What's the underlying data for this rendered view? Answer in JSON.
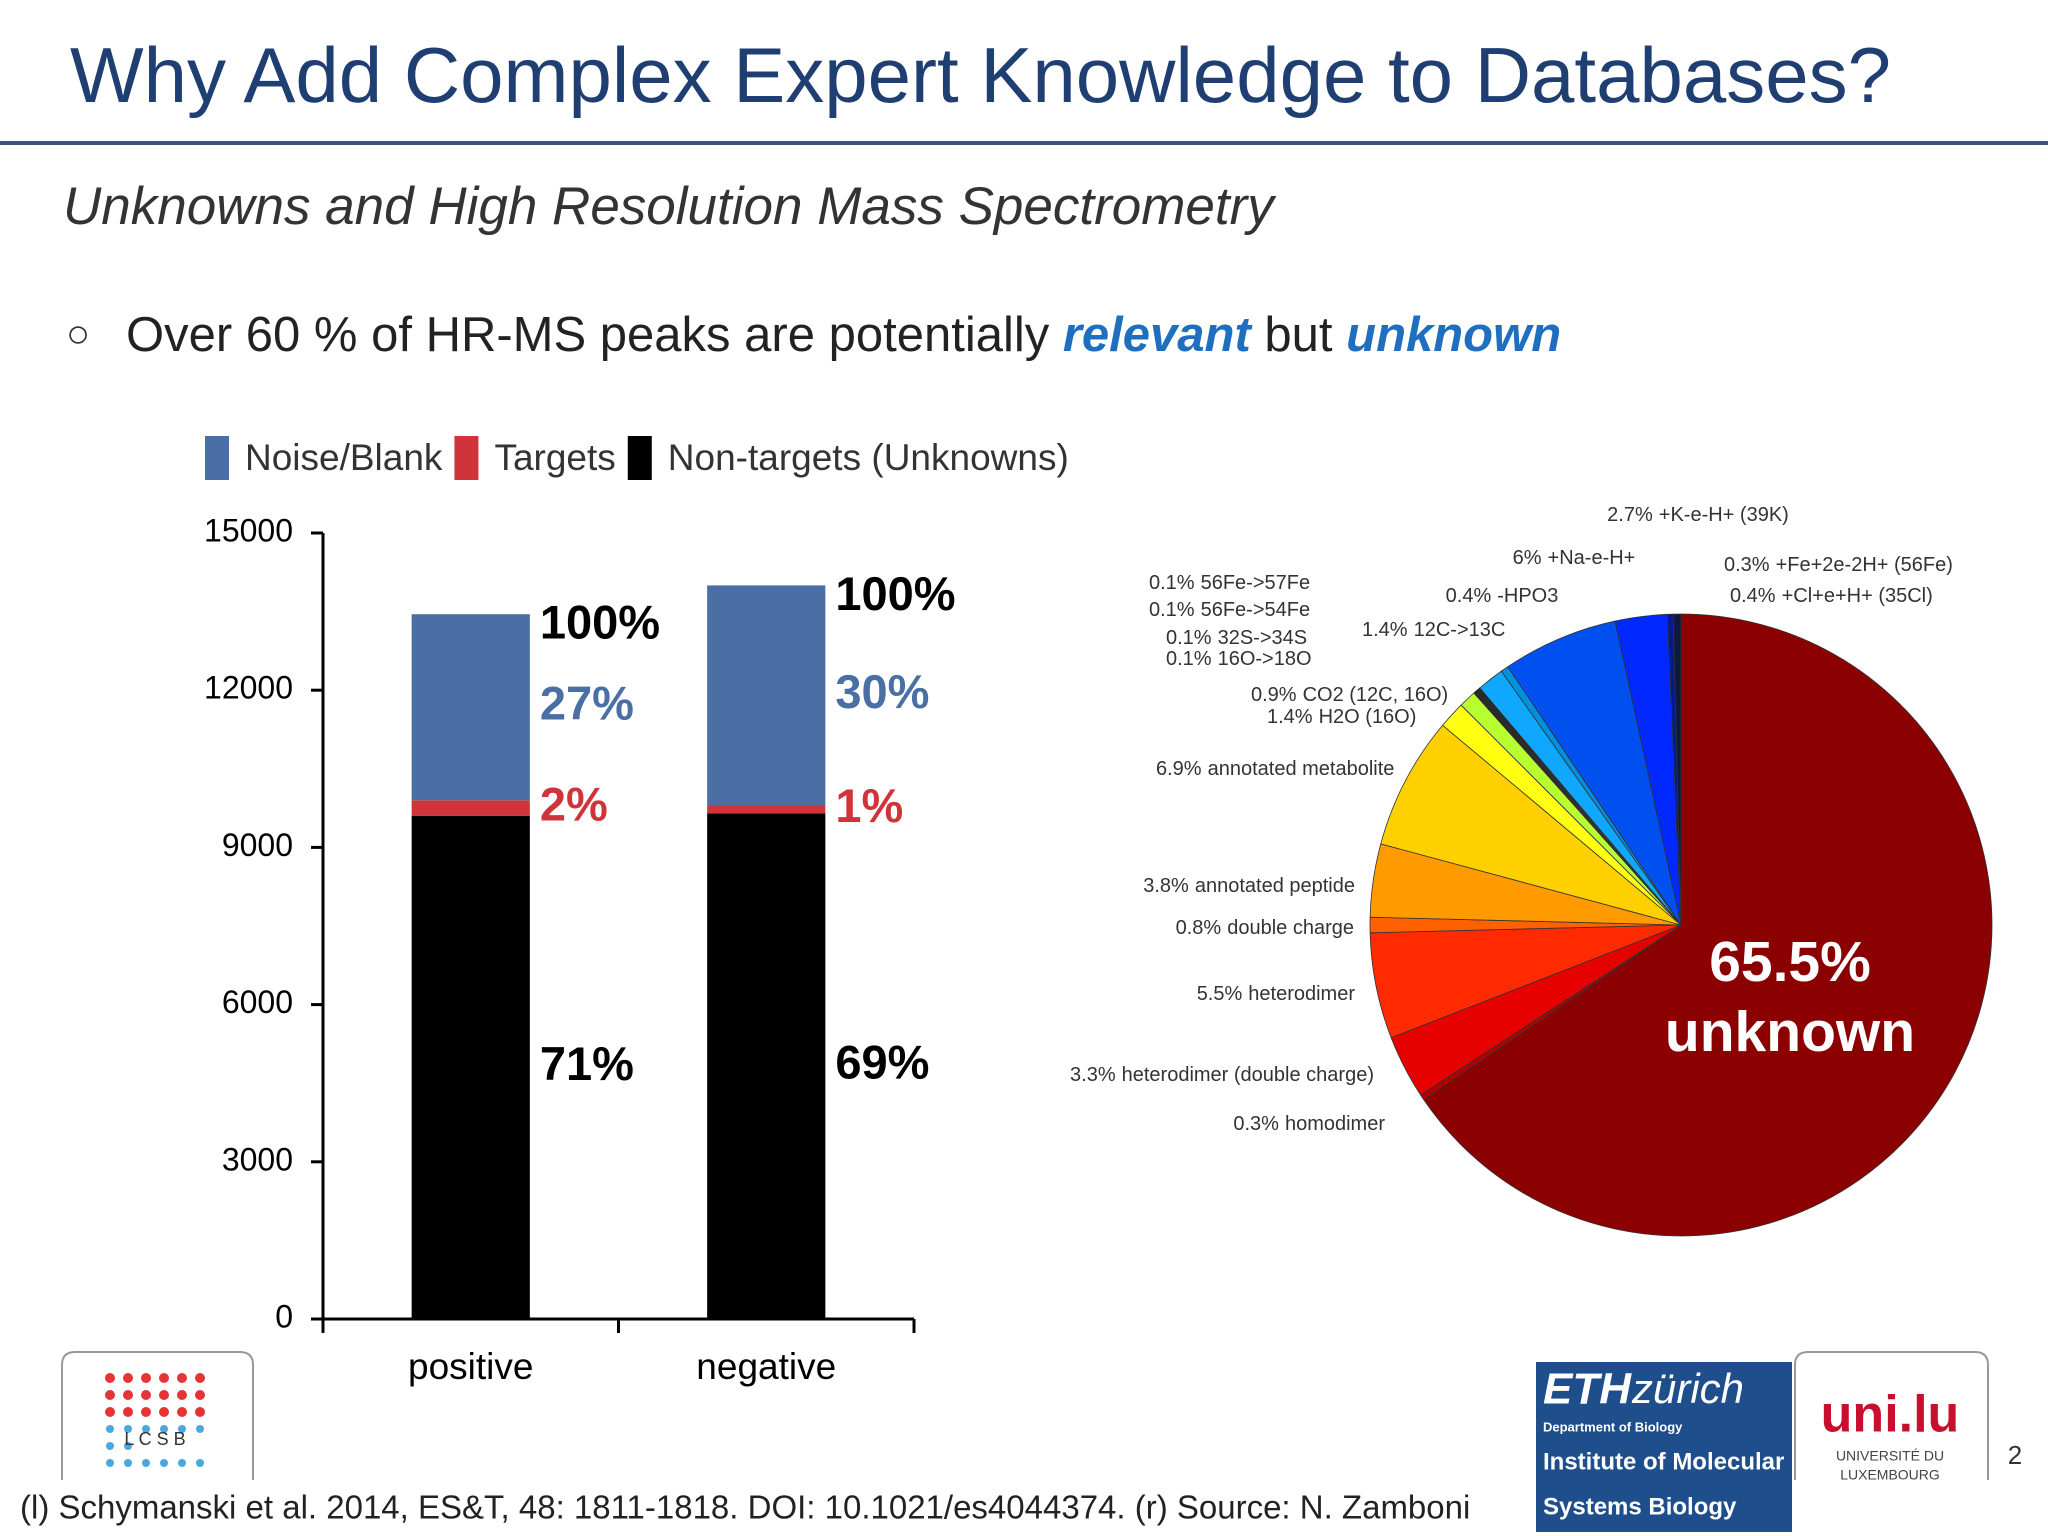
{
  "slide": {
    "title": "Why Add Complex Expert Knowledge to Databases?",
    "subtitle": "Unknowns and High Resolution Mass Spectrometry",
    "bullet": {
      "text": "Over 60 % of HR-MS peaks are potentially ",
      "em1": "relevant",
      "mid": " but ",
      "em2": "unknown"
    },
    "footer": "(l) Schymanski et al. 2014, ES&T, 48: 1811-1818. DOI: 10.1021/es4044374. (r) Source: N. Zamboni",
    "page_number": "2",
    "logos": {
      "lcsb": "L C S B",
      "eth": "ETH",
      "zurich": "zürich",
      "eth_dept": "Department of Biology",
      "eth_inst1": "Institute of Molecular",
      "eth_inst2": "Systems Biology",
      "unilu": "uni.lu",
      "unilu_1": "UNIVERSITÉ DU",
      "unilu_2": "LUXEMBOURG"
    }
  },
  "chart_data": [
    {
      "type": "stacked_bar",
      "categories": [
        "positive",
        "negative"
      ],
      "series": [
        {
          "name": "Non-targets (Unknowns)",
          "color": "#000000",
          "values": [
            9600,
            9650
          ],
          "annotations": [
            "71%",
            "69%"
          ]
        },
        {
          "name": "Targets",
          "color": "#d0343a",
          "values": [
            300,
            150
          ],
          "annotations": [
            "2%",
            "1%"
          ]
        },
        {
          "name": "Noise/Blank",
          "color": "#4a6fa5",
          "values": [
            3550,
            4200
          ],
          "annotations": [
            "27%",
            "30%"
          ]
        }
      ],
      "total_annotations": [
        "100%",
        "100%"
      ],
      "legend_order": [
        2,
        1,
        0
      ],
      "ylim": [
        0,
        15000
      ],
      "yticks": [
        0,
        3000,
        6000,
        9000,
        12000,
        15000
      ],
      "grid": false
    },
    {
      "type": "pie",
      "categories": [
        "unknown",
        "homodimer",
        "heterodimer (double charge)",
        "heterodimer",
        "double charge",
        "annotated peptide",
        "annotated metabolite",
        "H2O (16O)",
        "CO2 (12C, 16O)",
        "16O->18O",
        "32S->34S",
        "56Fe->54Fe",
        "56Fe->57Fe",
        "12C->13C",
        "-HPO3",
        "+Na-e-H+",
        "+K-e-H+ (39K)",
        "+Fe+2e-2H+ (56Fe)",
        "+Cl+e+H+ (35Cl)"
      ],
      "values": [
        65.5,
        0.3,
        3.3,
        5.5,
        0.8,
        3.8,
        6.9,
        1.4,
        0.9,
        0.1,
        0.1,
        0.1,
        0.1,
        1.4,
        0.4,
        6,
        2.7,
        0.3,
        0.4
      ],
      "value_labels": [
        "65.5%",
        "0.3%",
        "3.3%",
        "5.5%",
        "0.8%",
        "3.8%",
        "6.9%",
        "1.4%",
        "0.9%",
        "0.1%",
        "0.1%",
        "0.1%",
        "0.1%",
        "1.4%",
        "0.4%",
        "6%",
        "2.7%",
        "0.3%",
        "0.4%"
      ],
      "colors": [
        "#8b0000",
        "#b00000",
        "#e60000",
        "#ff2a00",
        "#ff6000",
        "#ff9a00",
        "#ffd000",
        "#ffff10",
        "#b8ff30",
        "#222222",
        "#222222",
        "#222222",
        "#222222",
        "#10a8ff",
        "#0090e0",
        "#0050f0",
        "#0028ff",
        "#001a90",
        "#101840"
      ]
    }
  ]
}
